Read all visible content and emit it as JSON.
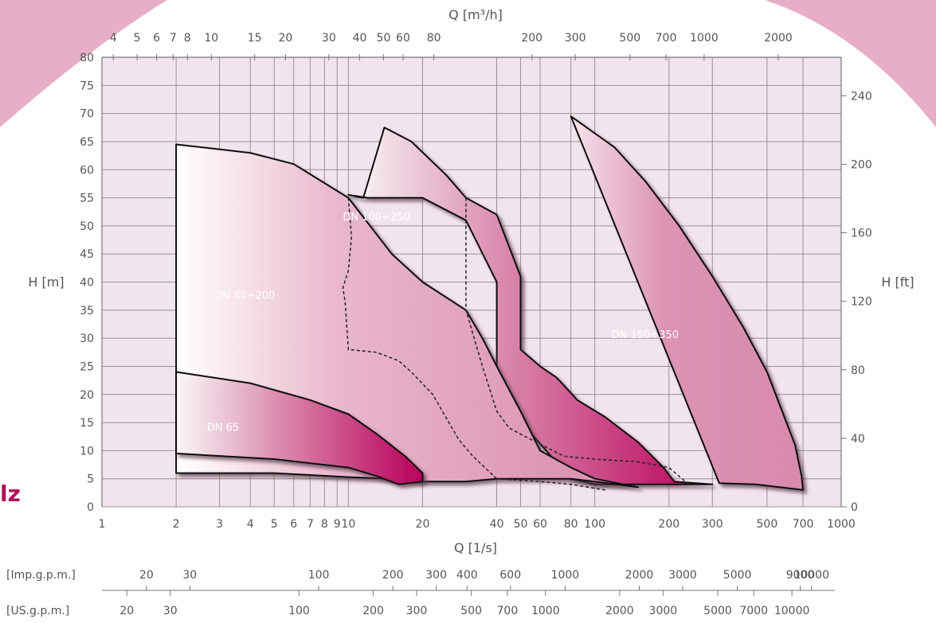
{
  "chart_data": {
    "type": "area",
    "xlabel_bottom": "Q [1/s]",
    "xlabel_top": "Q [m³/h]",
    "ylabel_left": "H [m]",
    "ylabel_right": "H [ft]",
    "x_scale": "log",
    "xlim": [
      1,
      1000
    ],
    "ylim": [
      0,
      80
    ],
    "grid": true,
    "x_ticks": [
      "1",
      "2",
      "3",
      "4",
      "5",
      "6",
      "7",
      "8",
      "9",
      "10",
      "20",
      "40",
      "50",
      "60",
      "80",
      "100",
      "200",
      "300",
      "500",
      "700",
      "1000"
    ],
    "y_ticks": [
      0,
      5,
      10,
      15,
      20,
      25,
      30,
      35,
      40,
      45,
      50,
      55,
      60,
      65,
      70,
      75,
      80
    ],
    "top_ticks": [
      "4",
      "5",
      "6",
      "7",
      "8",
      "10",
      "15",
      "20",
      "30",
      "40",
      "50",
      "60",
      "80",
      "200",
      "300",
      "500",
      "700",
      "1000",
      "2000"
    ],
    "right_ticks": [
      "0",
      "40",
      "80",
      "120",
      "160",
      "200",
      "240"
    ],
    "imp_gpm_label": "[Imp.g.p.m.]",
    "imp_gpm_ticks": [
      "20",
      "30",
      "100",
      "200",
      "300",
      "400",
      "600",
      "1000",
      "2000",
      "3000",
      "5000",
      "9000",
      "10000"
    ],
    "us_gpm_label": "[US.g.p.m.]",
    "us_gpm_ticks": [
      "20",
      "30",
      "100",
      "200",
      "300",
      "500",
      "700",
      "1000",
      "2000",
      "3000",
      "5000",
      "7000",
      "10000"
    ],
    "colors": {
      "plot_bg": "#f2e4ec",
      "grid": "#9a8f94",
      "region_light": "#dc8fb0",
      "region_dark": "#b8005a",
      "brand": "#b0105a"
    },
    "series": [
      {
        "name": "DN 150÷350",
        "points": [
          [
            80,
            69.5
          ],
          [
            120,
            64
          ],
          [
            160,
            58
          ],
          [
            220,
            50
          ],
          [
            300,
            41
          ],
          [
            400,
            32
          ],
          [
            500,
            24
          ],
          [
            650,
            11
          ],
          [
            690,
            5.5
          ],
          [
            700,
            3
          ],
          [
            450,
            4
          ],
          [
            320,
            4.2
          ]
        ]
      },
      {
        "name": "DN 100÷250",
        "points": [
          [
            10,
            55.5
          ],
          [
            11.5,
            55
          ],
          [
            14,
            67.5
          ],
          [
            18,
            65
          ],
          [
            25,
            59
          ],
          [
            30,
            55
          ],
          [
            40,
            52
          ],
          [
            50,
            41
          ],
          [
            50,
            28
          ],
          [
            60,
            25
          ],
          [
            70,
            23
          ],
          [
            85,
            19
          ],
          [
            110,
            16
          ],
          [
            150,
            11.5
          ],
          [
            190,
            7
          ],
          [
            210,
            4.5
          ],
          [
            300,
            4
          ],
          [
            150,
            4
          ],
          [
            100,
            4
          ],
          [
            80,
            5
          ],
          [
            40,
            20
          ],
          [
            40,
            40
          ],
          [
            30,
            51
          ],
          [
            20,
            55
          ],
          [
            12,
            55
          ],
          [
            10,
            55.5
          ]
        ]
      },
      {
        "name": "DN 80÷200",
        "points": [
          [
            2,
            64.5
          ],
          [
            4,
            63
          ],
          [
            6,
            61
          ],
          [
            10,
            55
          ],
          [
            15,
            45
          ],
          [
            20,
            40
          ],
          [
            30,
            35
          ],
          [
            35,
            30
          ],
          [
            40,
            25
          ],
          [
            50,
            17
          ],
          [
            60,
            10
          ],
          [
            80,
            7
          ],
          [
            100,
            5
          ],
          [
            150,
            3.5
          ],
          [
            100,
            4.5
          ],
          [
            80,
            5
          ],
          [
            60,
            5
          ],
          [
            50,
            5
          ],
          [
            40,
            5
          ],
          [
            30,
            4.5
          ],
          [
            20,
            4.5
          ],
          [
            15,
            5
          ],
          [
            10,
            5.3
          ],
          [
            5,
            6
          ],
          [
            2,
            6
          ]
        ]
      },
      {
        "name": "DN 65",
        "points": [
          [
            2,
            24
          ],
          [
            4,
            22
          ],
          [
            7,
            19
          ],
          [
            10,
            16.5
          ],
          [
            13,
            13
          ],
          [
            17,
            9
          ],
          [
            20,
            6
          ],
          [
            20,
            4.5
          ],
          [
            16,
            4
          ],
          [
            13,
            5.5
          ],
          [
            10,
            7
          ],
          [
            5,
            8.5
          ],
          [
            2,
            9.5
          ]
        ]
      }
    ],
    "annotations": [
      "DN 100÷250",
      "DN 80÷200",
      "DN 150÷350",
      "DN 65"
    ]
  },
  "brand_fragment": "lz"
}
